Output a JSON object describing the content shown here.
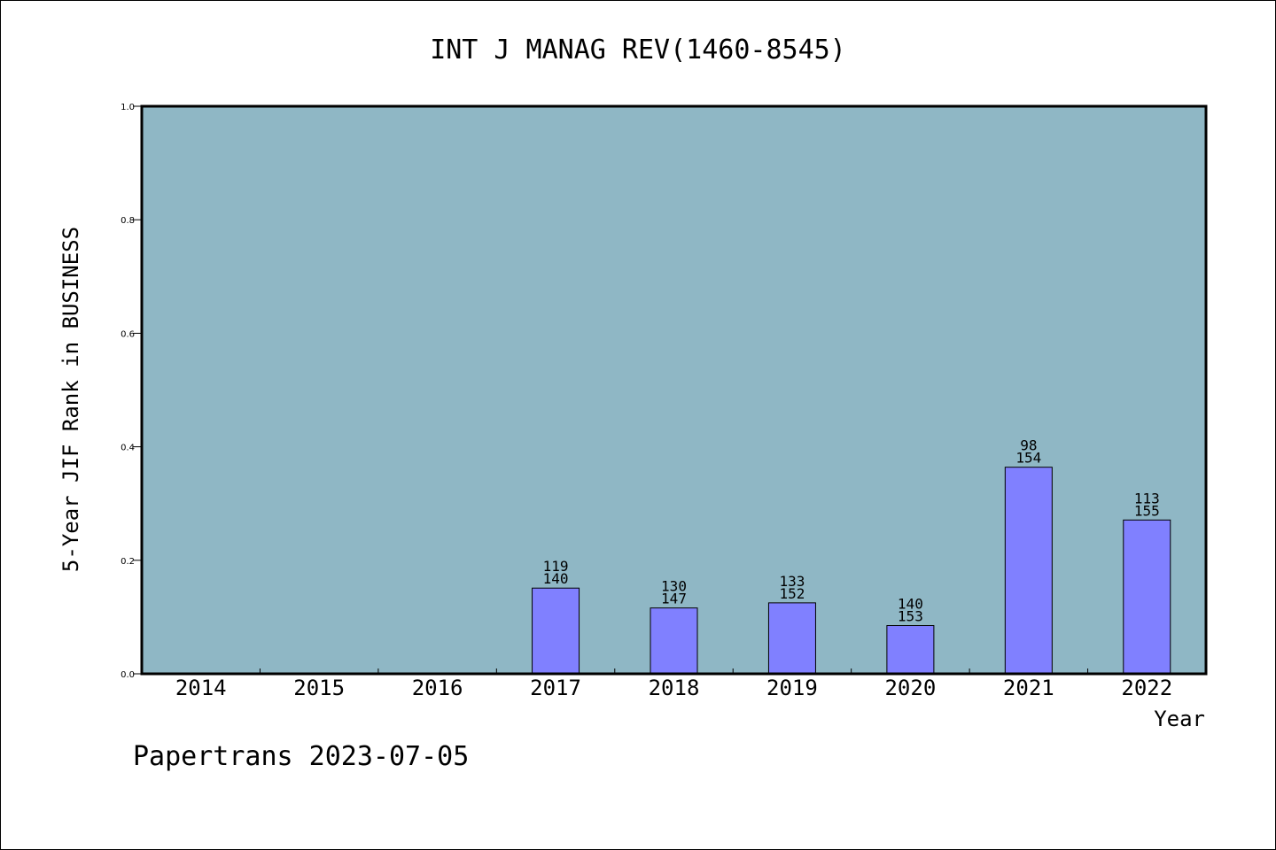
{
  "colors": {
    "plot_background": "#8fb7c5",
    "bar_fill": "#8080ff",
    "bar_stroke": "#000000",
    "frame": "#000000"
  },
  "footer": "Papertrans 2023-07-05",
  "chart_data": {
    "type": "bar",
    "title": "INT J MANAG REV(1460-8545)",
    "xlabel": "Year",
    "ylabel": "5-Year JIF Rank in BUSINESS",
    "ylim": [
      0,
      1.0
    ],
    "yticks": [
      "0.0",
      "0.2",
      "0.4",
      "0.6",
      "0.8",
      "1.0"
    ],
    "grid": false,
    "legend": "none",
    "categories": [
      "2014",
      "2015",
      "2016",
      "2017",
      "2018",
      "2019",
      "2020",
      "2021",
      "2022"
    ],
    "values": [
      null,
      null,
      null,
      0.151,
      0.116,
      0.125,
      0.085,
      0.364,
      0.271
    ],
    "rank": [
      null,
      null,
      null,
      "119",
      "130",
      "133",
      "140",
      "98",
      "113"
    ],
    "total": [
      null,
      null,
      null,
      "140",
      "147",
      "152",
      "153",
      "154",
      "155"
    ]
  }
}
